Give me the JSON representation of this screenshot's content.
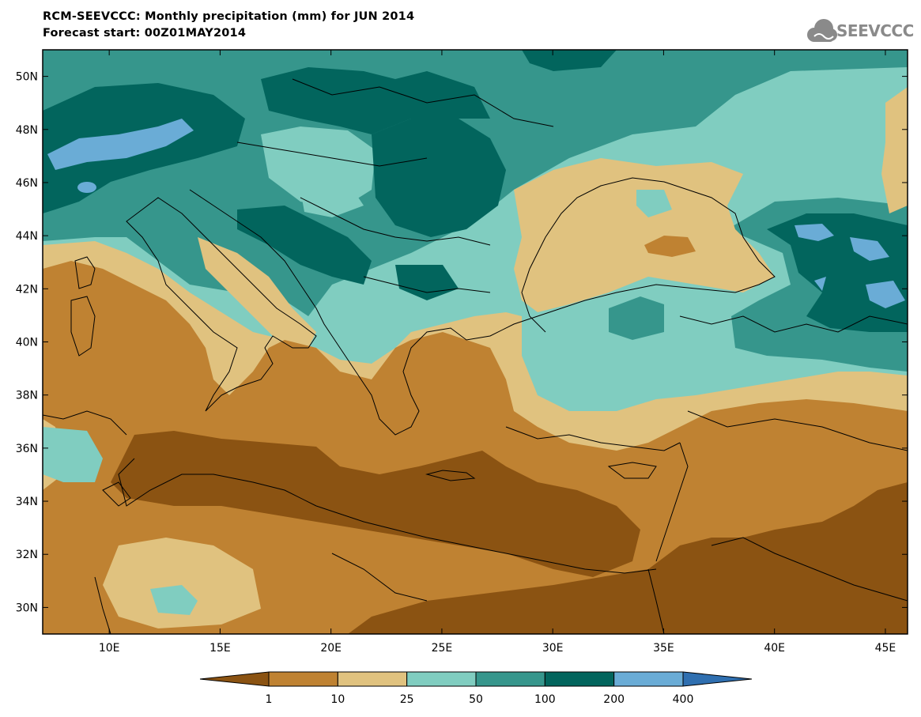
{
  "header": {
    "title_line1": "RCM-SEEVCCC: Monthly precipitation (mm) for JUN 2014",
    "title_line2": "Forecast start: 00Z01MAY2014",
    "logo_text": "SEEVCCC"
  },
  "map": {
    "projection": "lat-lon",
    "lon_range": [
      7,
      46
    ],
    "lat_range": [
      29,
      51
    ],
    "lon_ticks": [
      {
        "value": 10,
        "label": "10E"
      },
      {
        "value": 15,
        "label": "15E"
      },
      {
        "value": 20,
        "label": "20E"
      },
      {
        "value": 25,
        "label": "25E"
      },
      {
        "value": 30,
        "label": "30E"
      },
      {
        "value": 35,
        "label": "35E"
      },
      {
        "value": 40,
        "label": "40E"
      },
      {
        "value": 45,
        "label": "45E"
      }
    ],
    "lat_ticks": [
      {
        "value": 30,
        "label": "30N"
      },
      {
        "value": 32,
        "label": "32N"
      },
      {
        "value": 34,
        "label": "34N"
      },
      {
        "value": 36,
        "label": "36N"
      },
      {
        "value": 38,
        "label": "38N"
      },
      {
        "value": 40,
        "label": "40N"
      },
      {
        "value": 42,
        "label": "42N"
      },
      {
        "value": 44,
        "label": "44N"
      },
      {
        "value": 46,
        "label": "46N"
      },
      {
        "value": 48,
        "label": "48N"
      },
      {
        "value": 50,
        "label": "50N"
      }
    ]
  },
  "colorbar": {
    "colors": [
      "#8b5312",
      "#bf8232",
      "#e0c27f",
      "#80cdc0",
      "#36968c",
      "#02655d",
      "#6aacd6",
      "#2f6fb0"
    ],
    "labels": [
      "1",
      "10",
      "25",
      "50",
      "100",
      "200",
      "400"
    ]
  },
  "colors": {
    "c1": "#8b5312",
    "c10": "#bf8232",
    "c25": "#e0c27f",
    "c50": "#80cdc0",
    "c100": "#36968c",
    "c200": "#02655d",
    "c400": "#6aacd6",
    "cmax": "#2f6fb0"
  }
}
